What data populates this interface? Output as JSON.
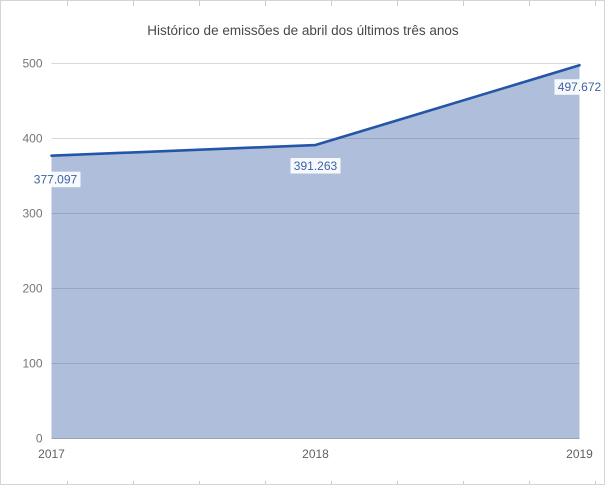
{
  "chart_data": {
    "type": "area",
    "title": "Histórico de emissões de abril dos últimos três anos",
    "xlabel": "",
    "ylabel": "",
    "x_categories": [
      "2017",
      "2018",
      "2019"
    ],
    "values": [
      377.097,
      391.263,
      497.672
    ],
    "point_labels": [
      "377.097",
      "391.263",
      "497.672"
    ],
    "y_ticks": [
      0,
      100,
      200,
      300,
      400,
      500
    ],
    "ylim": [
      0,
      500
    ],
    "grid": true,
    "legend": "none",
    "colors": {
      "line": "#2456a8",
      "area_fill": "rgba(45, 88, 160, 0.38)",
      "point_label_text": "#3b63a8",
      "annotation_bg": "#ffffff",
      "title_text": "#484848",
      "y_axis_text": "#757575",
      "x_axis_text": "#616161",
      "gridline": "#d9d9d9",
      "baseline": "#b3b3b3",
      "edge_tick": "#cccccc",
      "background": "#ffffff",
      "border": "#d5d5d5"
    }
  }
}
